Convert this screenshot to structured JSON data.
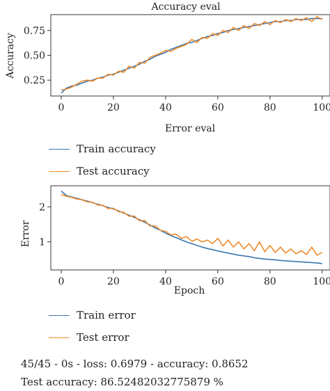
{
  "colors": {
    "train": "#3a75af",
    "test": "#ee8a2b",
    "axis": "#231f20"
  },
  "legend_top": {
    "train_label": "Train accuracy",
    "test_label": "Test accuracy"
  },
  "legend_bottom": {
    "train_label": "Train error",
    "test_label": "Test error"
  },
  "footer": {
    "line1": "45/45 - 0s - loss: 0.6979 - accuracy: 0.8652",
    "line2": "Test accuracy: 86.52482032775879 %"
  },
  "chart_data": [
    {
      "type": "line",
      "title": "Accuracy eval",
      "xlabel": "Error eval",
      "ylabel": "Accuracy",
      "xlim": [
        -4,
        103
      ],
      "ylim": [
        0.09,
        0.91
      ],
      "xticks": [
        0,
        20,
        40,
        60,
        80,
        100
      ],
      "yticks": [
        0.25,
        0.5,
        0.75
      ],
      "ytick_labels": [
        "0.25",
        "0.50",
        "0.75"
      ],
      "grid": false,
      "x": [
        0,
        2,
        4,
        6,
        8,
        10,
        12,
        14,
        16,
        18,
        20,
        22,
        24,
        26,
        28,
        30,
        32,
        34,
        36,
        38,
        40,
        42,
        44,
        46,
        48,
        50,
        52,
        54,
        56,
        58,
        60,
        62,
        64,
        66,
        68,
        70,
        72,
        74,
        76,
        78,
        80,
        82,
        84,
        86,
        88,
        90,
        92,
        94,
        96,
        98,
        100
      ],
      "series": [
        {
          "name": "Train accuracy",
          "color_key": "train",
          "values": [
            0.12,
            0.17,
            0.19,
            0.2,
            0.22,
            0.24,
            0.25,
            0.27,
            0.28,
            0.3,
            0.31,
            0.33,
            0.35,
            0.37,
            0.39,
            0.41,
            0.44,
            0.46,
            0.49,
            0.51,
            0.53,
            0.56,
            0.58,
            0.6,
            0.62,
            0.63,
            0.65,
            0.67,
            0.69,
            0.7,
            0.72,
            0.73,
            0.75,
            0.76,
            0.77,
            0.78,
            0.79,
            0.8,
            0.81,
            0.82,
            0.83,
            0.84,
            0.84,
            0.85,
            0.85,
            0.86,
            0.86,
            0.86,
            0.87,
            0.87,
            0.87
          ]
        },
        {
          "name": "Test accuracy",
          "color_key": "test",
          "values": [
            0.15,
            0.16,
            0.18,
            0.21,
            0.24,
            0.25,
            0.24,
            0.27,
            0.27,
            0.31,
            0.3,
            0.34,
            0.33,
            0.39,
            0.37,
            0.43,
            0.42,
            0.48,
            0.5,
            0.52,
            0.55,
            0.54,
            0.57,
            0.59,
            0.61,
            0.66,
            0.63,
            0.68,
            0.67,
            0.72,
            0.7,
            0.75,
            0.73,
            0.78,
            0.75,
            0.8,
            0.77,
            0.82,
            0.8,
            0.84,
            0.81,
            0.85,
            0.83,
            0.86,
            0.84,
            0.87,
            0.85,
            0.88,
            0.84,
            0.89,
            0.86
          ]
        }
      ]
    },
    {
      "type": "line",
      "title": "",
      "xlabel": "Epoch",
      "ylabel": "Error",
      "xlim": [
        -4,
        103
      ],
      "ylim": [
        0.2,
        2.6
      ],
      "xticks": [
        0,
        20,
        40,
        60,
        80,
        100
      ],
      "yticks": [
        1,
        2
      ],
      "ytick_labels": [
        "1",
        "2"
      ],
      "grid": false,
      "x": [
        0,
        2,
        4,
        6,
        8,
        10,
        12,
        14,
        16,
        18,
        20,
        22,
        24,
        26,
        28,
        30,
        32,
        34,
        36,
        38,
        40,
        42,
        44,
        46,
        48,
        50,
        52,
        54,
        56,
        58,
        60,
        62,
        64,
        66,
        68,
        70,
        72,
        74,
        76,
        78,
        80,
        82,
        84,
        86,
        88,
        90,
        92,
        94,
        96,
        98,
        100
      ],
      "series": [
        {
          "name": "Train error",
          "color_key": "train",
          "values": [
            2.45,
            2.32,
            2.28,
            2.24,
            2.2,
            2.16,
            2.12,
            2.07,
            2.03,
            1.98,
            1.94,
            1.88,
            1.82,
            1.76,
            1.7,
            1.63,
            1.56,
            1.48,
            1.4,
            1.33,
            1.25,
            1.18,
            1.12,
            1.06,
            1.0,
            0.95,
            0.9,
            0.85,
            0.81,
            0.78,
            0.74,
            0.71,
            0.68,
            0.65,
            0.62,
            0.6,
            0.58,
            0.55,
            0.53,
            0.51,
            0.5,
            0.49,
            0.47,
            0.46,
            0.45,
            0.44,
            0.43,
            0.42,
            0.41,
            0.4,
            0.38
          ]
        },
        {
          "name": "Test error",
          "color_key": "test",
          "values": [
            2.35,
            2.3,
            2.27,
            2.22,
            2.2,
            2.14,
            2.13,
            2.05,
            2.04,
            1.95,
            1.96,
            1.86,
            1.84,
            1.73,
            1.74,
            1.6,
            1.61,
            1.45,
            1.46,
            1.33,
            1.3,
            1.2,
            1.22,
            1.1,
            1.15,
            1.02,
            1.08,
            1.0,
            1.05,
            0.95,
            1.1,
            0.88,
            1.05,
            0.85,
            1.0,
            0.8,
            0.95,
            0.75,
            1.0,
            0.72,
            0.9,
            0.7,
            0.85,
            0.68,
            0.8,
            0.66,
            0.75,
            0.64,
            0.85,
            0.62,
            0.7
          ]
        }
      ]
    }
  ]
}
